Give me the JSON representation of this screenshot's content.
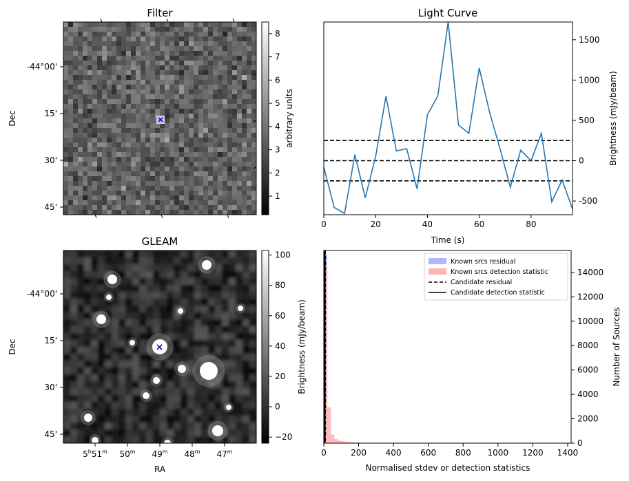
{
  "chart_data": [
    {
      "type": "heatmap",
      "title": "Filter",
      "ylabel": "Dec",
      "y_tick_labels": [
        "-44°00'",
        "15'",
        "30'",
        "45'"
      ],
      "colorbar": {
        "label": "arbitrary units",
        "range": [
          0.2,
          8.5
        ],
        "ticks": [
          "1",
          "2",
          "3",
          "4",
          "5",
          "6",
          "7",
          "8"
        ],
        "colormap": "gray"
      },
      "marker": {
        "symbol": "x",
        "color": "#2a00c8"
      }
    },
    {
      "type": "line",
      "title": "Light Curve",
      "xlabel": "Time (s)",
      "ylabel": "Brightness (mJy/beam)",
      "xlim": [
        0,
        96
      ],
      "ylim": [
        -670,
        1720
      ],
      "x_ticks": [
        "0",
        "20",
        "40",
        "60",
        "80"
      ],
      "y_ticks": [
        "-500",
        "0",
        "500",
        "1000",
        "1500"
      ],
      "color": "#1f77b4",
      "x": [
        0,
        4,
        8,
        12,
        16,
        20,
        24,
        28,
        32,
        36,
        40,
        44,
        48,
        52,
        56,
        60,
        64,
        68,
        72,
        76,
        80,
        84,
        88,
        92,
        96
      ],
      "y": [
        -80,
        -580,
        -655,
        75,
        -460,
        50,
        800,
        120,
        150,
        -350,
        570,
        800,
        1720,
        440,
        340,
        1150,
        600,
        150,
        -330,
        130,
        0,
        340,
        -510,
        -240,
        -600
      ],
      "hlines": [
        {
          "y": 250,
          "style": "dashed"
        },
        {
          "y": 0,
          "style": "dashed"
        },
        {
          "y": -250,
          "style": "dashed"
        }
      ]
    },
    {
      "type": "heatmap",
      "title": "GLEAM",
      "xlabel": "RA",
      "ylabel": "Dec",
      "x_tick_labels": [
        "5h51m",
        "50m",
        "49m",
        "48m",
        "47m"
      ],
      "y_tick_labels": [
        "-44°00'",
        "15'",
        "30'",
        "45'"
      ],
      "colorbar": {
        "label": "Brightness (mJy/beam)",
        "range": [
          -24,
          103
        ],
        "ticks": [
          "−20",
          "0",
          "20",
          "40",
          "60",
          "80",
          "100"
        ],
        "colormap": "gray"
      },
      "marker": {
        "symbol": "x",
        "color": "#2a00c8"
      }
    },
    {
      "type": "bar",
      "xlabel": "Normalised stdev or detection statistics",
      "ylabel": "Number of Sources",
      "xlim": [
        0,
        1420
      ],
      "ylim": [
        0,
        15800
      ],
      "x_ticks": [
        "0",
        "200",
        "400",
        "600",
        "800",
        "1000",
        "1200",
        "1400"
      ],
      "y_ticks": [
        "0",
        "2000",
        "4000",
        "6000",
        "8000",
        "10000",
        "12000",
        "14000"
      ],
      "bin_width": 20,
      "series": [
        {
          "name": "Known srcs residual",
          "color": "#b3b3ff",
          "bins": [
            [
              0,
              15500
            ]
          ]
        },
        {
          "name": "Known srcs detection statistic",
          "color": "#ffb3b3",
          "bins": [
            [
              0,
              14400
            ],
            [
              20,
              2950
            ],
            [
              40,
              700
            ],
            [
              60,
              330
            ],
            [
              80,
              220
            ],
            [
              100,
              160
            ],
            [
              120,
              120
            ],
            [
              140,
              90
            ],
            [
              160,
              70
            ],
            [
              180,
              60
            ],
            [
              200,
              50
            ],
            [
              220,
              40
            ],
            [
              260,
              30
            ],
            [
              300,
              25
            ],
            [
              400,
              20
            ],
            [
              500,
              15
            ],
            [
              600,
              20
            ],
            [
              700,
              15
            ],
            [
              800,
              15
            ],
            [
              900,
              10
            ],
            [
              1000,
              10
            ],
            [
              1100,
              10
            ],
            [
              1300,
              30
            ],
            [
              1360,
              15
            ]
          ]
        }
      ],
      "candidate_lines": [
        {
          "name": "Candidate residual",
          "style": "dashed",
          "x": 0
        },
        {
          "name": "Candidate detection statistic",
          "style": "solid",
          "x": 0
        }
      ]
    }
  ]
}
